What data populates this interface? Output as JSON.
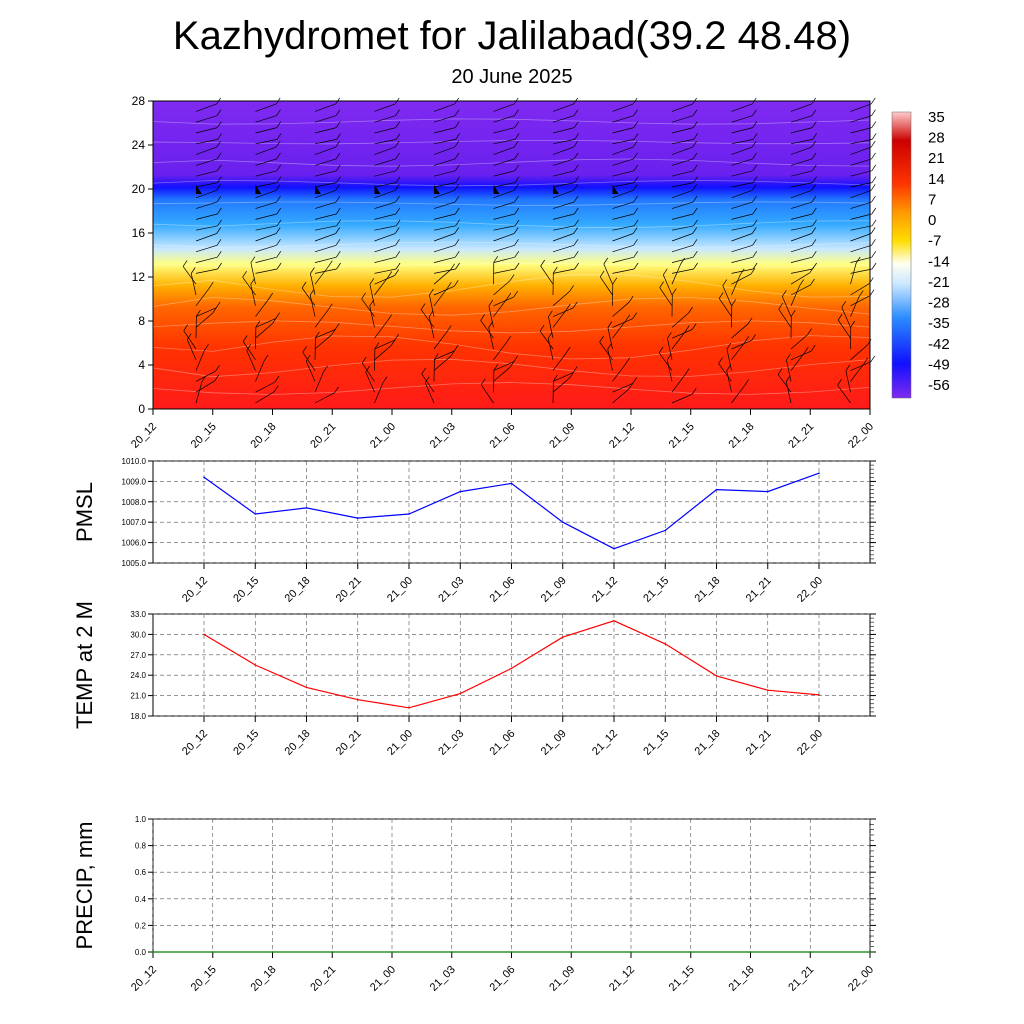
{
  "title": "Kazhydromet for Jalilabad(39.2 48.48)",
  "subtitle": "20 June 2025",
  "colors": {
    "pmsl_line": "#0000ff",
    "temp_line": "#ff0000",
    "precip_line": "#008000"
  },
  "chart_data": [
    {
      "type": "heatmap",
      "x_ticks": [
        "20_12",
        "20_15",
        "20_18",
        "20_21",
        "21_00",
        "21_03",
        "21_06",
        "21_09",
        "21_12",
        "21_15",
        "21_18",
        "21_21",
        "22_00"
      ],
      "y_ticks": [
        "0",
        "4",
        "8",
        "12",
        "16",
        "20",
        "24",
        "28"
      ],
      "ylim": [
        0,
        28
      ],
      "colorbar_labels": [
        "35",
        "28",
        "21",
        "14",
        "7",
        "0",
        "-7",
        "-14",
        "-21",
        "-28",
        "-35",
        "-42",
        "-49",
        "-56"
      ]
    },
    {
      "type": "line",
      "ylabel": "PMSL",
      "ylim": [
        1005.0,
        1010.0
      ],
      "y_ticks": [
        "1005.0",
        "1006.0",
        "1007.0",
        "1008.0",
        "1009.0",
        "1010.0"
      ],
      "x_ticks": [
        "20_12",
        "20_15",
        "20_18",
        "20_21",
        "21_00",
        "21_03",
        "21_06",
        "21_09",
        "21_12",
        "21_15",
        "21_18",
        "21_21",
        "22_00"
      ],
      "values": [
        1009.2,
        1007.4,
        1007.7,
        1007.2,
        1007.4,
        1008.5,
        1008.9,
        1007.0,
        1005.7,
        1006.6,
        1008.6,
        1008.5,
        1009.4
      ]
    },
    {
      "type": "line",
      "ylabel": "TEMP at 2 M",
      "ylim": [
        18.0,
        33.0
      ],
      "y_ticks": [
        "18.0",
        "21.0",
        "24.0",
        "27.0",
        "30.0",
        "33.0"
      ],
      "x_ticks": [
        "20_12",
        "20_15",
        "20_18",
        "20_21",
        "21_00",
        "21_03",
        "21_06",
        "21_09",
        "21_12",
        "21_15",
        "21_18",
        "21_21",
        "22_00"
      ],
      "values": [
        30.0,
        25.5,
        22.2,
        20.4,
        19.2,
        21.3,
        25.0,
        29.6,
        32.0,
        28.6,
        23.9,
        21.8,
        21.1
      ]
    },
    {
      "type": "line",
      "ylabel": "PRECIP, mm",
      "ylim": [
        0.0,
        1.0
      ],
      "y_ticks": [
        "0.0",
        "0.2",
        "0.4",
        "0.6",
        "0.8",
        "1.0"
      ],
      "x_ticks": [
        "20_12",
        "20_15",
        "20_18",
        "20_21",
        "21_00",
        "21_03",
        "21_06",
        "21_09",
        "21_12",
        "21_15",
        "21_18",
        "21_21",
        "22_00"
      ],
      "values": [
        0,
        0,
        0,
        0,
        0,
        0,
        0,
        0,
        0,
        0,
        0,
        0,
        0
      ]
    }
  ]
}
